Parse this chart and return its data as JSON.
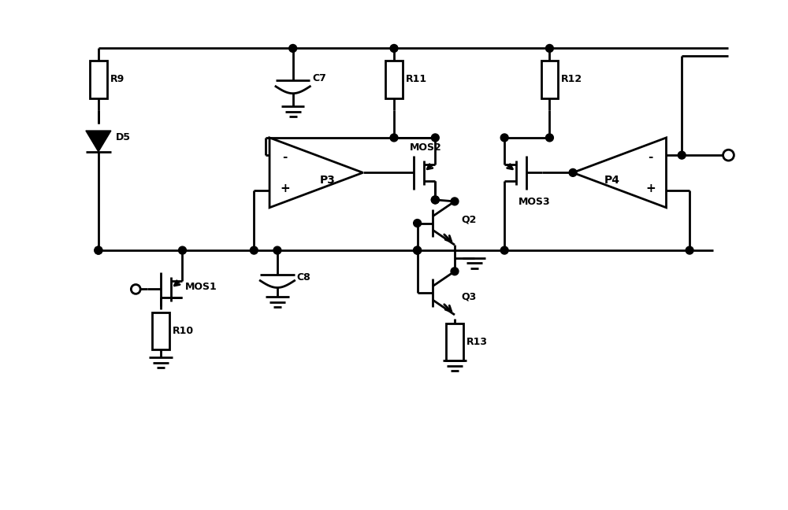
{
  "bg_color": "#ffffff",
  "lw": 2.0,
  "fig_width": 10.0,
  "fig_height": 6.48,
  "components": {
    "R9": {
      "x": 12,
      "label": "R9"
    },
    "R10": {
      "x": 20,
      "label": "R10"
    },
    "R11": {
      "x": 50,
      "label": "R11"
    },
    "R12": {
      "x": 70,
      "label": "R12"
    },
    "R13": {
      "x": 57,
      "label": "R13"
    },
    "C7": {
      "x": 37,
      "label": "C7"
    },
    "C8": {
      "x": 37,
      "label": "C8"
    },
    "D5": {
      "x": 12,
      "label": "D5"
    },
    "MOS1": {
      "label": "MOS1"
    },
    "MOS2": {
      "label": "MOS2"
    },
    "MOS3": {
      "label": "MOS3"
    },
    "P3": {
      "label": "P3"
    },
    "P4": {
      "label": "P4"
    },
    "Q2": {
      "label": "Q2"
    },
    "Q3": {
      "label": "Q3"
    }
  }
}
